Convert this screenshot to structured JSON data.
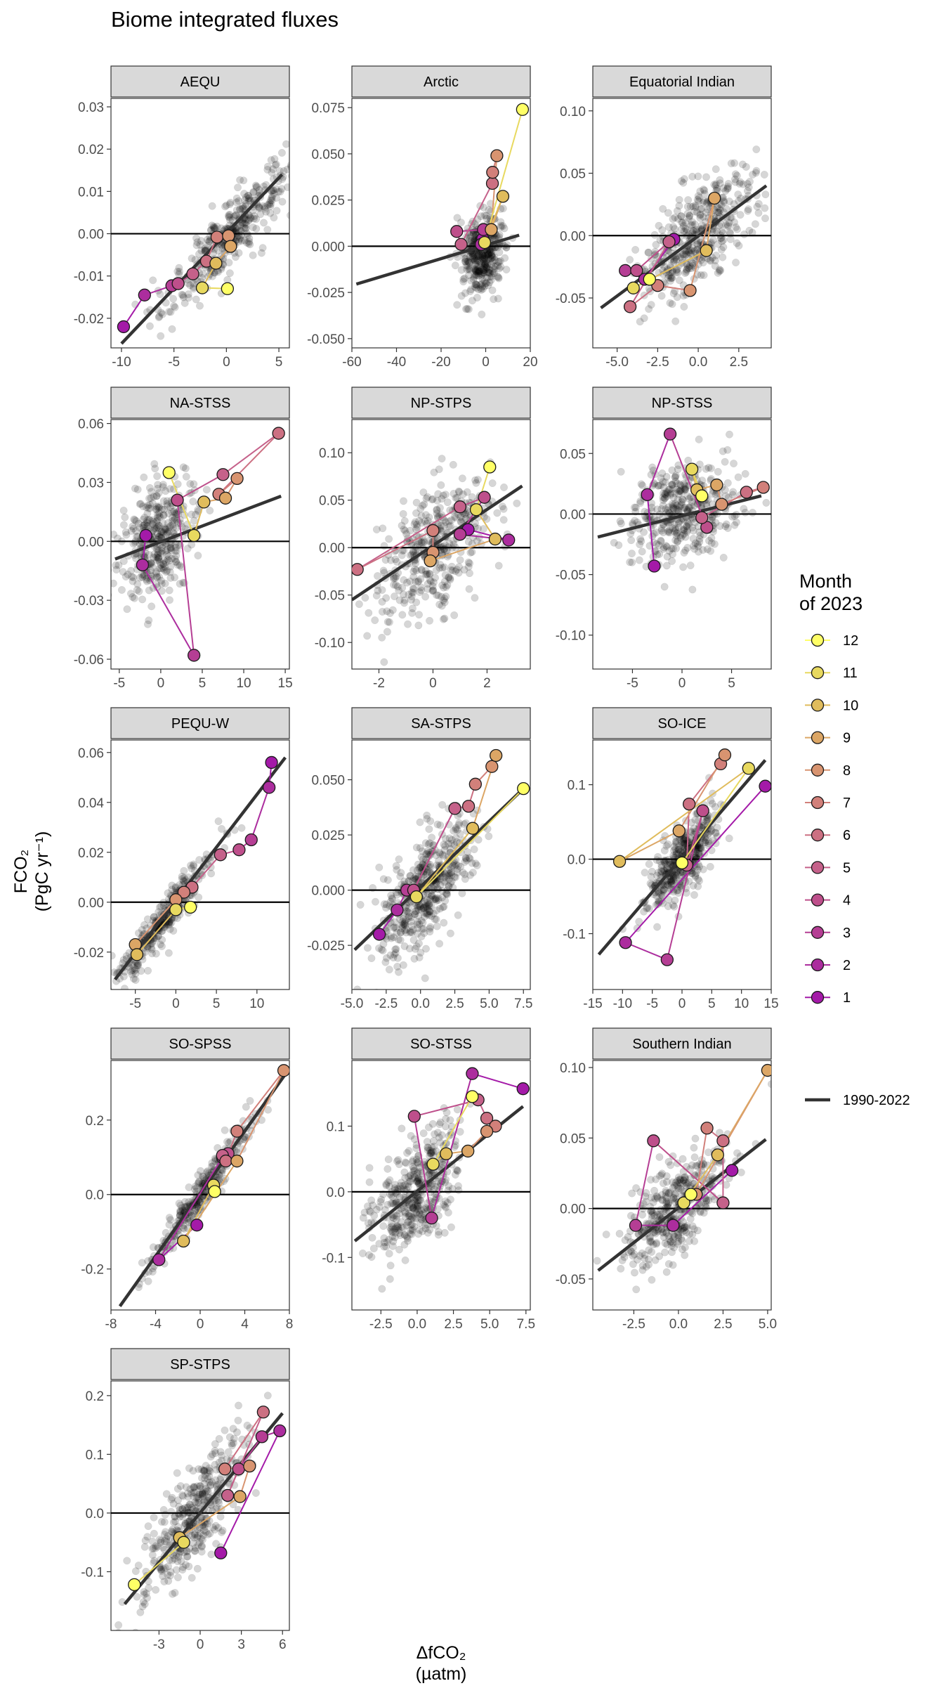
{
  "title": "Biome integrated fluxes",
  "y_axis_title": "FCO₂\n(PgC yr⁻¹)",
  "x_axis_title": "ΔfCO₂\n(µatm)",
  "legend": {
    "title_line1": "Month",
    "title_line2": "of 2023",
    "months": [
      "12",
      "11",
      "10",
      "9",
      "8",
      "7",
      "6",
      "5",
      "4",
      "3",
      "2",
      "1"
    ],
    "month_colors": {
      "1": "#A41AA8",
      "2": "#AC2D9E",
      "3": "#B53E94",
      "4": "#BE4F8B",
      "5": "#C5618A",
      "6": "#CC7082",
      "7": "#D2807A",
      "8": "#D89470",
      "9": "#DCA665",
      "10": "#E0BC5C",
      "11": "#E8D95F",
      "12": "#FFFF66"
    },
    "fit_label": "1990-2022",
    "fit_color": "#333333"
  },
  "chart_data": [
    {
      "type": "scatter",
      "name": "AEQU",
      "xlim": [
        -11,
        6
      ],
      "ylim": [
        -0.027,
        0.032
      ],
      "xticks": [
        -10,
        -5,
        0,
        5
      ],
      "yticks": [
        -0.02,
        -0.01,
        0.0,
        0.01,
        0.02,
        0.03
      ],
      "xtick_labels": [
        "-10",
        "-5",
        "0",
        "5"
      ],
      "ytick_labels": [
        "-0.02",
        "-0.01",
        "0.00",
        "0.01",
        "0.02",
        "0.03"
      ],
      "fit": {
        "x": [
          -10,
          5.3
        ],
        "y": [
          -0.026,
          0.014
        ]
      },
      "cloud": {
        "n": 380,
        "cx": 0.5,
        "cy": 0.0,
        "sx": 3.0,
        "slope": 0.0026,
        "resid": 0.004
      },
      "monthly": [
        [
          -9.8,
          -0.022
        ],
        [
          -7.8,
          -0.0145
        ],
        [
          -5.2,
          -0.0123
        ],
        [
          -4.6,
          -0.0118
        ],
        [
          -3.2,
          -0.0095
        ],
        [
          -1.9,
          -0.0065
        ],
        [
          -0.9,
          -0.0008
        ],
        [
          0.2,
          -0.0005
        ],
        [
          0.4,
          -0.003
        ],
        [
          -1.0,
          -0.007
        ],
        [
          -2.3,
          -0.0128
        ],
        [
          0.1,
          -0.013
        ]
      ]
    },
    {
      "type": "scatter",
      "name": "Arctic",
      "xlim": [
        -60,
        20
      ],
      "ylim": [
        -0.055,
        0.08
      ],
      "xticks": [
        -60,
        -40,
        -20,
        0,
        20
      ],
      "yticks": [
        -0.05,
        -0.025,
        0.0,
        0.025,
        0.05,
        0.075
      ],
      "xtick_labels": [
        "-60",
        "-40",
        "-20",
        "0",
        "20"
      ],
      "ytick_labels": [
        "-0.050",
        "-0.025",
        "0.000",
        "0.025",
        "0.050",
        "0.075"
      ],
      "fit": {
        "x": [
          -58,
          15
        ],
        "y": [
          -0.0205,
          0.006
        ]
      },
      "cloud": {
        "n": 380,
        "cx": -1,
        "cy": -0.004,
        "sx": 4.5,
        "slope": 0.0004,
        "resid": 0.011
      },
      "monthly": [
        [
          -1.3,
          0.004
        ],
        [
          -2.0,
          0.001
        ],
        [
          -1.0,
          0.009
        ],
        [
          -13.0,
          0.008
        ],
        [
          -11.0,
          0.001
        ],
        [
          3.0,
          0.034
        ],
        [
          3.1,
          0.04
        ],
        [
          5.0,
          0.049
        ],
        [
          2.5,
          0.009
        ],
        [
          7.7,
          0.027
        ],
        [
          -0.5,
          0.002
        ],
        [
          16.5,
          0.074
        ]
      ]
    },
    {
      "type": "scatter",
      "name": "Equatorial Indian",
      "xlim": [
        -6.5,
        4.5
      ],
      "ylim": [
        -0.09,
        0.11
      ],
      "xticks": [
        -5,
        -2.5,
        0,
        2.5
      ],
      "yticks": [
        -0.05,
        0.0,
        0.05,
        0.1
      ],
      "xtick_labels": [
        "-5.0",
        "-2.5",
        "0.0",
        "2.5"
      ],
      "ytick_labels": [
        "-0.05",
        "0.00",
        "0.05",
        "0.10"
      ],
      "fit": {
        "x": [
          -6,
          4.2
        ],
        "y": [
          -0.058,
          0.04
        ]
      },
      "cloud": {
        "n": 420,
        "cx": 0,
        "cy": 0.0,
        "sx": 1.8,
        "slope": 0.009,
        "resid": 0.02
      },
      "monthly": [
        [
          -1.5,
          -0.003
        ],
        [
          -3.3,
          -0.035
        ],
        [
          -4.5,
          -0.028
        ],
        [
          -3.8,
          -0.028
        ],
        [
          -1.8,
          -0.005
        ],
        [
          -4.2,
          -0.057
        ],
        [
          -2.5,
          -0.04
        ],
        [
          -0.5,
          -0.044
        ],
        [
          1.0,
          0.03
        ],
        [
          0.5,
          -0.012
        ],
        [
          -4.0,
          -0.042
        ],
        [
          -3.0,
          -0.035
        ]
      ]
    },
    {
      "type": "scatter",
      "name": "NA-STSS",
      "xlim": [
        -6,
        15.5
      ],
      "ylim": [
        -0.065,
        0.062
      ],
      "xticks": [
        -5,
        0,
        5,
        10,
        15
      ],
      "yticks": [
        -0.06,
        -0.03,
        0.0,
        0.03,
        0.06
      ],
      "xtick_labels": [
        "-5",
        "0",
        "5",
        "10",
        "15"
      ],
      "ytick_labels": [
        "-0.06",
        "-0.03",
        "0.00",
        "0.03",
        "0.06"
      ],
      "fit": {
        "x": [
          -5.5,
          14.5
        ],
        "y": [
          -0.009,
          0.023
        ]
      },
      "cloud": {
        "n": 380,
        "cx": -0.5,
        "cy": 0.0,
        "sx": 2.3,
        "slope": 0.002,
        "resid": 0.013
      },
      "monthly": [
        [
          -1.8,
          0.003
        ],
        [
          -2.2,
          -0.012
        ],
        [
          4.0,
          -0.058
        ],
        [
          2.0,
          0.021
        ],
        [
          7.5,
          0.034
        ],
        [
          14.2,
          0.055
        ],
        [
          7.0,
          0.024
        ],
        [
          9.2,
          0.032
        ],
        [
          7.8,
          0.022
        ],
        [
          5.2,
          0.02
        ],
        [
          4.0,
          0.003
        ],
        [
          1.0,
          0.035
        ]
      ]
    },
    {
      "type": "scatter",
      "name": "NP-STPS",
      "xlim": [
        -3,
        3.6
      ],
      "ylim": [
        -0.128,
        0.135
      ],
      "xticks": [
        -2,
        0,
        2
      ],
      "yticks": [
        -0.1,
        -0.05,
        0.0,
        0.05,
        0.1
      ],
      "xtick_labels": [
        "-2",
        "0",
        "2"
      ],
      "ytick_labels": [
        "-0.10",
        "-0.05",
        "0.00",
        "0.05",
        "0.10"
      ],
      "fit": {
        "x": [
          -3,
          3.3
        ],
        "y": [
          -0.055,
          0.065
        ]
      },
      "cloud": {
        "n": 400,
        "cx": 0,
        "cy": 0.0,
        "sx": 1.1,
        "slope": 0.019,
        "resid": 0.032
      },
      "monthly": [
        [
          1.3,
          0.019
        ],
        [
          2.8,
          0.008
        ],
        [
          1.0,
          0.014
        ],
        [
          1.9,
          0.053
        ],
        [
          1.0,
          0.043
        ],
        [
          -2.8,
          -0.023
        ],
        [
          0,
          0.018
        ],
        [
          0.0,
          -0.005
        ],
        [
          -0.1,
          -0.014
        ],
        [
          2.3,
          0.009
        ],
        [
          1.6,
          0.04
        ],
        [
          2.1,
          0.085
        ]
      ]
    },
    {
      "type": "scatter",
      "name": "NP-STSS",
      "xlim": [
        -9,
        9
      ],
      "ylim": [
        -0.128,
        0.078
      ],
      "xticks": [
        -5,
        0,
        5
      ],
      "yticks": [
        -0.1,
        -0.05,
        0.0,
        0.05
      ],
      "xtick_labels": [
        "-5",
        "0",
        "5"
      ],
      "ytick_labels": [
        "-0.10",
        "-0.05",
        "0.00",
        "0.05"
      ],
      "fit": {
        "x": [
          -8.5,
          8
        ],
        "y": [
          -0.019,
          0.015
        ]
      },
      "cloud": {
        "n": 400,
        "cx": 0,
        "cy": 0.0,
        "sx": 2.8,
        "slope": 0.002,
        "resid": 0.02
      },
      "monthly": [
        [
          -2.8,
          -0.043
        ],
        [
          -3.5,
          0.016
        ],
        [
          -1.2,
          0.066
        ],
        [
          2.5,
          -0.011
        ],
        [
          2.0,
          -0.003
        ],
        [
          6.5,
          0.018
        ],
        [
          8.2,
          0.022
        ],
        [
          4.0,
          0.008
        ],
        [
          3.5,
          0.024
        ],
        [
          1.5,
          0.02
        ],
        [
          1.0,
          0.037
        ],
        [
          2.0,
          0.015
        ]
      ]
    },
    {
      "type": "scatter",
      "name": "PEQU-W",
      "xlim": [
        -8,
        14
      ],
      "ylim": [
        -0.035,
        0.065
      ],
      "xticks": [
        -5,
        0,
        5,
        10
      ],
      "yticks": [
        -0.02,
        0.0,
        0.02,
        0.04,
        0.06
      ],
      "xtick_labels": [
        "-5",
        "0",
        "5",
        "10"
      ],
      "ytick_labels": [
        "-0.02",
        "0.00",
        "0.02",
        "0.04",
        "0.06"
      ],
      "fit": {
        "x": [
          -7.5,
          13.5
        ],
        "y": [
          -0.031,
          0.058
        ]
      },
      "cloud": {
        "n": 320,
        "cx": -1.5,
        "cy": -0.0065,
        "sx": 3.0,
        "slope": 0.0043,
        "resid": 0.004
      },
      "monthly": [
        [
          11.8,
          0.056
        ],
        [
          11.5,
          0.046
        ],
        [
          9.3,
          0.025
        ],
        [
          7.8,
          0.021
        ],
        [
          5.5,
          0.019
        ],
        [
          2.0,
          0.006
        ],
        [
          1.0,
          0.004
        ],
        [
          0.0,
          0.001
        ],
        [
          -5.0,
          -0.017
        ],
        [
          -4.8,
          -0.021
        ],
        [
          0.0,
          -0.003
        ],
        [
          1.8,
          -0.002
        ]
      ]
    },
    {
      "type": "scatter",
      "name": "SA-STPS",
      "xlim": [
        -5,
        8
      ],
      "ylim": [
        -0.045,
        0.068
      ],
      "xticks": [
        -5,
        -2.5,
        0,
        2.5,
        5,
        7.5
      ],
      "yticks": [
        -0.025,
        0.0,
        0.025,
        0.05
      ],
      "xtick_labels": [
        "-5.0",
        "-2.5",
        "0.0",
        "2.5",
        "5.0",
        "7.5"
      ],
      "ytick_labels": [
        "-0.025",
        "0.000",
        "0.025",
        "0.050"
      ],
      "fit": {
        "x": [
          -4.8,
          7.5
        ],
        "y": [
          -0.027,
          0.046
        ]
      },
      "cloud": {
        "n": 480,
        "cx": 0.3,
        "cy": 0.0,
        "sx": 1.6,
        "slope": 0.006,
        "resid": 0.011
      },
      "monthly": [
        [
          -3.0,
          -0.02
        ],
        [
          -1.7,
          -0.009
        ],
        [
          -1.0,
          0.0
        ],
        [
          -0.5,
          -0.0
        ],
        [
          2.5,
          0.037
        ],
        [
          3.5,
          0.038
        ],
        [
          4.0,
          0.048
        ],
        [
          5.2,
          0.056
        ],
        [
          5.5,
          0.061
        ],
        [
          3.8,
          0.028
        ],
        [
          -0.3,
          -0.003
        ],
        [
          7.5,
          0.046
        ]
      ]
    },
    {
      "type": "scatter",
      "name": "SO-ICE",
      "xlim": [
        -15,
        15
      ],
      "ylim": [
        -0.175,
        0.16
      ],
      "xticks": [
        -15,
        -10,
        -5,
        0,
        5,
        10,
        15
      ],
      "yticks": [
        -0.1,
        0.0,
        0.1
      ],
      "xtick_labels": [
        "-15",
        "-10",
        "-5",
        "0",
        "5",
        "10",
        "15"
      ],
      "ytick_labels": [
        "-0.1",
        "0.0",
        "0.1"
      ],
      "fit": {
        "x": [
          -14,
          14
        ],
        "y": [
          -0.128,
          0.133
        ]
      },
      "cloud": {
        "n": 420,
        "cx": 0,
        "cy": 0.0,
        "sx": 2.8,
        "slope": 0.009,
        "resid": 0.022
      },
      "monthly": [
        [
          14.0,
          0.098
        ],
        [
          -9.5,
          -0.112
        ],
        [
          -2.5,
          -0.135
        ],
        [
          3.5,
          0.065
        ],
        [
          0.8,
          -0.008
        ],
        [
          1.2,
          0.074
        ],
        [
          6.5,
          0.128
        ],
        [
          7.2,
          0.14
        ],
        [
          -0.5,
          0.038
        ],
        [
          -10.5,
          -0.003
        ],
        [
          11.2,
          0.122
        ],
        [
          0.0,
          -0.005
        ]
      ]
    },
    {
      "type": "scatter",
      "name": "SO-SPSS",
      "xlim": [
        -8,
        8
      ],
      "ylim": [
        -0.31,
        0.36
      ],
      "xticks": [
        -8,
        -4,
        0,
        4,
        8
      ],
      "yticks": [
        -0.2,
        0.0,
        0.2
      ],
      "xtick_labels": [
        "-8",
        "-4",
        "0",
        "4",
        "8"
      ],
      "ytick_labels": [
        "-0.2",
        "0.0",
        "0.2"
      ],
      "fit": {
        "x": [
          -7.2,
          7.8
        ],
        "y": [
          -0.3,
          0.33
        ]
      },
      "cloud": {
        "n": 300,
        "cx": 0,
        "cy": 0.0,
        "sx": 2.3,
        "slope": 0.042,
        "resid": 0.025
      },
      "monthly": [
        [
          -0.3,
          -0.082
        ],
        [
          -3.7,
          -0.175
        ],
        [
          2.0,
          0.1
        ],
        [
          2.5,
          0.11
        ],
        [
          2.0,
          0.105
        ],
        [
          2.3,
          0.09
        ],
        [
          3.3,
          0.17
        ],
        [
          7.5,
          0.333
        ],
        [
          3.3,
          0.09
        ],
        [
          -1.5,
          -0.125
        ],
        [
          1.2,
          0.025
        ],
        [
          1.3,
          0.008
        ]
      ]
    },
    {
      "type": "scatter",
      "name": "SO-STSS",
      "xlim": [
        -4.5,
        7.8
      ],
      "ylim": [
        -0.18,
        0.2
      ],
      "xticks": [
        -2.5,
        0,
        2.5,
        5,
        7.5
      ],
      "yticks": [
        -0.1,
        0.0,
        0.1
      ],
      "xtick_labels": [
        "-2.5",
        "0.0",
        "2.5",
        "5.0",
        "7.5"
      ],
      "ytick_labels": [
        "-0.1",
        "0.0",
        "0.1"
      ],
      "fit": {
        "x": [
          -4.3,
          7.3
        ],
        "y": [
          -0.075,
          0.13
        ]
      },
      "cloud": {
        "n": 420,
        "cx": 0,
        "cy": 0.0,
        "sx": 1.5,
        "slope": 0.018,
        "resid": 0.04
      },
      "monthly": [
        [
          7.3,
          0.157
        ],
        [
          3.8,
          0.18
        ],
        [
          1.0,
          -0.04
        ],
        [
          -0.2,
          0.115
        ],
        [
          4.2,
          0.14
        ],
        [
          4.8,
          0.112
        ],
        [
          5.4,
          0.1
        ],
        [
          4.8,
          0.092
        ],
        [
          3.5,
          0.062
        ],
        [
          2.0,
          0.058
        ],
        [
          1.1,
          0.042
        ],
        [
          3.8,
          0.145
        ]
      ]
    },
    {
      "type": "scatter",
      "name": "Southern Indian",
      "xlim": [
        -4.8,
        5.2
      ],
      "ylim": [
        -0.072,
        0.105
      ],
      "xticks": [
        -2.5,
        0,
        2.5,
        5
      ],
      "yticks": [
        -0.05,
        0.0,
        0.05,
        0.1
      ],
      "xtick_labels": [
        "-2.5",
        "0.0",
        "2.5",
        "5.0"
      ],
      "ytick_labels": [
        "-0.05",
        "0.00",
        "0.05",
        "0.10"
      ],
      "fit": {
        "x": [
          -4.5,
          4.9
        ],
        "y": [
          -0.044,
          0.049
        ]
      },
      "cloud": {
        "n": 400,
        "cx": -0.2,
        "cy": 0.0,
        "sx": 1.4,
        "slope": 0.01,
        "resid": 0.016
      },
      "monthly": [
        [
          3.0,
          0.027
        ],
        [
          -0.3,
          -0.012
        ],
        [
          -2.4,
          -0.012
        ],
        [
          -1.4,
          0.048
        ],
        [
          2.5,
          0.004
        ],
        [
          2.5,
          0.048
        ],
        [
          1.6,
          0.057
        ],
        [
          1.0,
          0.01
        ],
        [
          5.0,
          0.098
        ],
        [
          2.2,
          0.038
        ],
        [
          0.3,
          0.004
        ],
        [
          0.7,
          0.01
        ]
      ]
    },
    {
      "type": "scatter",
      "name": "SP-STPS",
      "xlim": [
        -6.5,
        6.5
      ],
      "ylim": [
        -0.2,
        0.225
      ],
      "xticks": [
        -3,
        0,
        3,
        6
      ],
      "yticks": [
        -0.1,
        0.0,
        0.1,
        0.2
      ],
      "xtick_labels": [
        "-3",
        "0",
        "3",
        "6"
      ],
      "ytick_labels": [
        "-0.1",
        "0.0",
        "0.1",
        "0.2"
      ],
      "fit": {
        "x": [
          -5.5,
          6
        ],
        "y": [
          -0.155,
          0.17
        ]
      },
      "cloud": {
        "n": 400,
        "cx": -0.3,
        "cy": 0.0,
        "sx": 1.9,
        "slope": 0.028,
        "resid": 0.04
      },
      "monthly": [
        [
          1.5,
          -0.068
        ],
        [
          5.8,
          0.14
        ],
        [
          4.5,
          0.13
        ],
        [
          2.8,
          0.075
        ],
        [
          2.0,
          0.03
        ],
        [
          4.6,
          0.172
        ],
        [
          1.8,
          0.075
        ],
        [
          3.6,
          0.08
        ],
        [
          2.9,
          0.028
        ],
        [
          -1.5,
          -0.042
        ],
        [
          -1.2,
          -0.05
        ],
        [
          -4.8,
          -0.122
        ]
      ]
    }
  ]
}
